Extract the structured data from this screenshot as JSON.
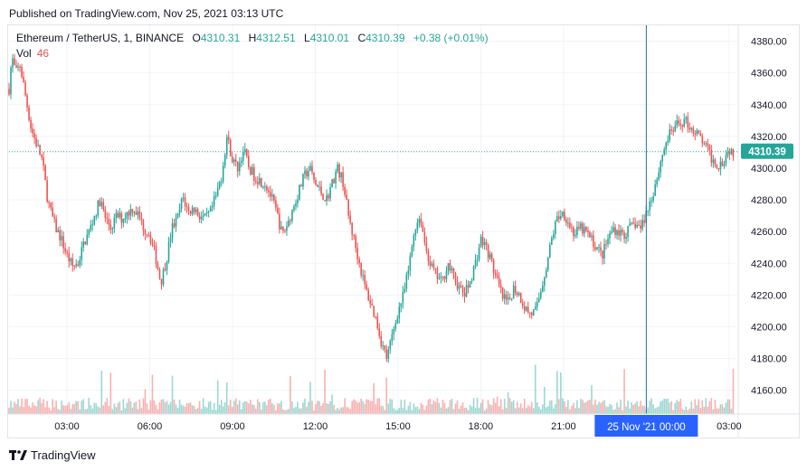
{
  "published": "Published on TradingView.com, Nov 25, 2021 03:13 UTC",
  "legend": {
    "symbol": "Ethereum / TetherUS, 1, BINANCE",
    "o_label": "O",
    "o_value": "4310.31",
    "h_label": "H",
    "h_value": "4312.51",
    "l_label": "L",
    "l_value": "4310.01",
    "c_label": "C",
    "c_value": "4310.39",
    "change": "+0.38 (+0.01%)",
    "vol_label": "Vol",
    "vol_value": "46"
  },
  "brand": "TradingView",
  "colors": {
    "up": "#26a69a",
    "down": "#ef5350",
    "crosshair": "#2a6db0",
    "price_tag": "#26a69a",
    "date_tag": "#2962ff"
  },
  "chart_data": {
    "type": "candlestick",
    "interval": "1 minute",
    "y_ticks": [
      4160,
      4180,
      4200,
      4220,
      4240,
      4260,
      4280,
      4300,
      4320,
      4340,
      4360,
      4380
    ],
    "y_tick_labels": [
      "4160.00",
      "4180.00",
      "4200.00",
      "4220.00",
      "4240.00",
      "4260.00",
      "4280.00",
      "4300.00",
      "4320.00",
      "4340.00",
      "4360.00",
      "4380.00"
    ],
    "ylim": [
      4145,
      4390
    ],
    "x_ticks": [
      "03:00",
      "06:00",
      "09:00",
      "12:00",
      "15:00",
      "18:00",
      "21:00",
      "00:00",
      "03:00"
    ],
    "x_tick_hours": [
      3,
      6,
      9,
      12,
      15,
      18,
      21,
      24,
      27
    ],
    "xlim_hours": [
      0.9,
      27.3
    ],
    "current_price": 4310.39,
    "current_price_label": "4310.39",
    "crosshair_hour": 24,
    "crosshair_label": "25 Nov '21   00:00",
    "path": [
      [
        0.9,
        4350
      ],
      [
        1.0,
        4370
      ],
      [
        1.15,
        4360
      ],
      [
        1.3,
        4365
      ],
      [
        1.5,
        4345
      ],
      [
        1.7,
        4325
      ],
      [
        1.9,
        4315
      ],
      [
        2.1,
        4305
      ],
      [
        2.3,
        4280
      ],
      [
        2.45,
        4270
      ],
      [
        2.6,
        4262
      ],
      [
        2.8,
        4255
      ],
      [
        3.0,
        4245
      ],
      [
        3.2,
        4238
      ],
      [
        3.4,
        4240
      ],
      [
        3.6,
        4252
      ],
      [
        3.8,
        4260
      ],
      [
        4.0,
        4270
      ],
      [
        4.2,
        4280
      ],
      [
        4.4,
        4268
      ],
      [
        4.6,
        4262
      ],
      [
        4.8,
        4270
      ],
      [
        5.0,
        4268
      ],
      [
        5.2,
        4272
      ],
      [
        5.4,
        4275
      ],
      [
        5.6,
        4270
      ],
      [
        5.8,
        4262
      ],
      [
        6.0,
        4258
      ],
      [
        6.2,
        4245
      ],
      [
        6.4,
        4228
      ],
      [
        6.6,
        4242
      ],
      [
        6.8,
        4262
      ],
      [
        7.0,
        4268
      ],
      [
        7.2,
        4282
      ],
      [
        7.4,
        4272
      ],
      [
        7.6,
        4275
      ],
      [
        7.8,
        4270
      ],
      [
        8.0,
        4268
      ],
      [
        8.2,
        4272
      ],
      [
        8.4,
        4282
      ],
      [
        8.6,
        4295
      ],
      [
        8.8,
        4320
      ],
      [
        9.0,
        4305
      ],
      [
        9.2,
        4300
      ],
      [
        9.4,
        4312
      ],
      [
        9.6,
        4300
      ],
      [
        9.8,
        4295
      ],
      [
        10.0,
        4292
      ],
      [
        10.2,
        4290
      ],
      [
        10.4,
        4282
      ],
      [
        10.6,
        4272
      ],
      [
        10.8,
        4258
      ],
      [
        11.0,
        4265
      ],
      [
        11.2,
        4275
      ],
      [
        11.4,
        4285
      ],
      [
        11.6,
        4295
      ],
      [
        11.8,
        4300
      ],
      [
        12.0,
        4290
      ],
      [
        12.2,
        4285
      ],
      [
        12.4,
        4280
      ],
      [
        12.6,
        4290
      ],
      [
        12.8,
        4300
      ],
      [
        13.0,
        4292
      ],
      [
        13.2,
        4270
      ],
      [
        13.4,
        4255
      ],
      [
        13.6,
        4240
      ],
      [
        13.8,
        4225
      ],
      [
        14.0,
        4215
      ],
      [
        14.2,
        4205
      ],
      [
        14.4,
        4190
      ],
      [
        14.6,
        4180
      ],
      [
        14.8,
        4195
      ],
      [
        15.0,
        4210
      ],
      [
        15.2,
        4220
      ],
      [
        15.4,
        4238
      ],
      [
        15.6,
        4262
      ],
      [
        15.8,
        4270
      ],
      [
        16.0,
        4250
      ],
      [
        16.2,
        4238
      ],
      [
        16.4,
        4232
      ],
      [
        16.6,
        4228
      ],
      [
        16.8,
        4240
      ],
      [
        17.0,
        4232
      ],
      [
        17.2,
        4225
      ],
      [
        17.4,
        4220
      ],
      [
        17.6,
        4228
      ],
      [
        17.8,
        4240
      ],
      [
        18.0,
        4255
      ],
      [
        18.2,
        4250
      ],
      [
        18.4,
        4240
      ],
      [
        18.6,
        4228
      ],
      [
        18.8,
        4218
      ],
      [
        19.0,
        4215
      ],
      [
        19.2,
        4225
      ],
      [
        19.4,
        4220
      ],
      [
        19.6,
        4212
      ],
      [
        19.8,
        4208
      ],
      [
        20.0,
        4210
      ],
      [
        20.2,
        4225
      ],
      [
        20.4,
        4240
      ],
      [
        20.6,
        4258
      ],
      [
        20.8,
        4270
      ],
      [
        21.0,
        4272
      ],
      [
        21.2,
        4265
      ],
      [
        21.4,
        4258
      ],
      [
        21.6,
        4262
      ],
      [
        21.8,
        4260
      ],
      [
        22.0,
        4255
      ],
      [
        22.2,
        4250
      ],
      [
        22.4,
        4245
      ],
      [
        22.6,
        4255
      ],
      [
        22.8,
        4262
      ],
      [
        23.0,
        4260
      ],
      [
        23.2,
        4258
      ],
      [
        23.4,
        4262
      ],
      [
        23.6,
        4265
      ],
      [
        23.8,
        4262
      ],
      [
        24.0,
        4272
      ],
      [
        24.2,
        4282
      ],
      [
        24.4,
        4295
      ],
      [
        24.6,
        4310
      ],
      [
        24.8,
        4320
      ],
      [
        25.0,
        4325
      ],
      [
        25.2,
        4328
      ],
      [
        25.4,
        4330
      ],
      [
        25.6,
        4326
      ],
      [
        25.8,
        4322
      ],
      [
        26.0,
        4318
      ],
      [
        26.2,
        4312
      ],
      [
        26.4,
        4305
      ],
      [
        26.6,
        4302
      ],
      [
        26.8,
        4305
      ],
      [
        27.0,
        4312
      ],
      [
        27.15,
        4310
      ]
    ]
  }
}
